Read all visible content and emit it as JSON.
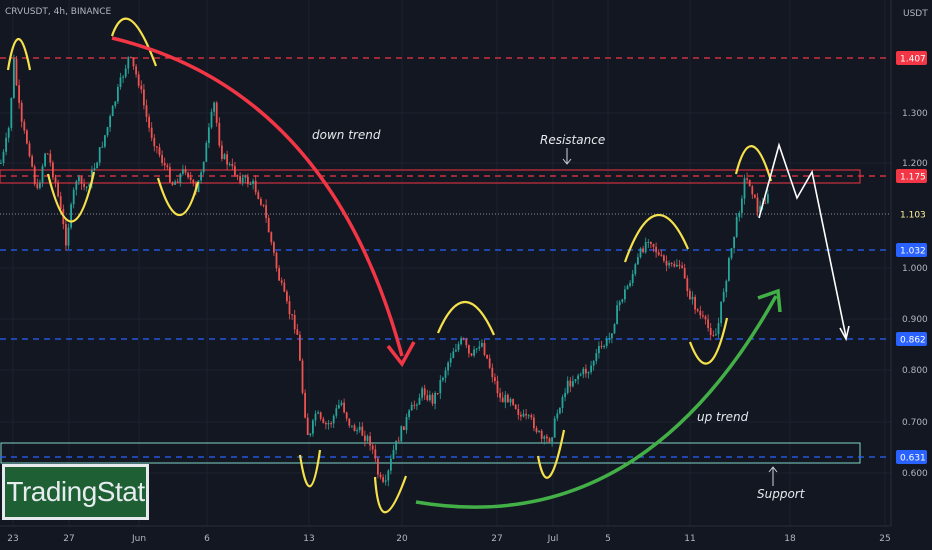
{
  "header": {
    "symbol_text": "CRVUSDT, 4h, BINANCE"
  },
  "price_scale": {
    "currency": "USDT",
    "ticks": [
      "1.300",
      "1.200",
      "1.000",
      "0.900",
      "0.800",
      "0.700",
      "0.600"
    ]
  },
  "time_axis": {
    "labels": [
      "23",
      "27",
      "Jun",
      "6",
      "13",
      "20",
      "27",
      "Jul",
      "5",
      "11",
      "18",
      "25"
    ]
  },
  "levels": [
    {
      "label": "1.407",
      "color": "#f23645",
      "type": "resistance-top"
    },
    {
      "label": "1.175",
      "color": "#f23645",
      "type": "resistance"
    },
    {
      "label": "1.103",
      "color": "#fff59d",
      "type": "current"
    },
    {
      "label": "1.032",
      "color": "#2962ff",
      "type": "level"
    },
    {
      "label": "0.862",
      "color": "#2962ff",
      "type": "level"
    },
    {
      "label": "0.631",
      "color": "#2962ff",
      "type": "support"
    }
  ],
  "annotations": {
    "down_trend": "down trend",
    "up_trend": "up trend",
    "resistance": "Resistance",
    "support": "Support"
  },
  "logo": {
    "text": "TradingStat",
    "icon": "tradingstat-logo"
  },
  "colors": {
    "up": "#26a69a",
    "down": "#ef5350",
    "wave": "#f5e14b",
    "down_arrow": "#f23645",
    "up_arrow": "#43b047",
    "projection": "#ffffff"
  },
  "chart_data": {
    "type": "candlestick",
    "symbol": "CRVUSDT",
    "interval": "4h",
    "exchange": "BINANCE",
    "x_axis_ticks": [
      "23",
      "27",
      "Jun",
      "6",
      "13",
      "20",
      "27",
      "Jul",
      "5",
      "11",
      "18",
      "25"
    ],
    "y_axis_ticks": [
      1.3,
      1.2,
      1.0,
      0.9,
      0.8,
      0.7,
      0.6
    ],
    "ylim": [
      0.55,
      1.45
    ],
    "horizontal_levels": [
      1.407,
      1.175,
      1.103,
      1.032,
      0.862,
      0.631
    ],
    "price_path": [
      {
        "x": 0,
        "y": 1.2
      },
      {
        "x": 3,
        "y": 1.22
      },
      {
        "x": 8,
        "y": 1.27
      },
      {
        "x": 13,
        "y": 1.4
      },
      {
        "x": 20,
        "y": 1.28
      },
      {
        "x": 28,
        "y": 1.23
      },
      {
        "x": 36,
        "y": 1.14
      },
      {
        "x": 45,
        "y": 1.23
      },
      {
        "x": 55,
        "y": 1.16
      },
      {
        "x": 65,
        "y": 1.05
      },
      {
        "x": 75,
        "y": 1.17
      },
      {
        "x": 85,
        "y": 1.15
      },
      {
        "x": 95,
        "y": 1.2
      },
      {
        "x": 108,
        "y": 1.28
      },
      {
        "x": 118,
        "y": 1.35
      },
      {
        "x": 128,
        "y": 1.41
      },
      {
        "x": 138,
        "y": 1.36
      },
      {
        "x": 148,
        "y": 1.27
      },
      {
        "x": 160,
        "y": 1.21
      },
      {
        "x": 172,
        "y": 1.16
      },
      {
        "x": 185,
        "y": 1.19
      },
      {
        "x": 195,
        "y": 1.14
      },
      {
        "x": 205,
        "y": 1.23
      },
      {
        "x": 213,
        "y": 1.32
      },
      {
        "x": 220,
        "y": 1.22
      },
      {
        "x": 230,
        "y": 1.19
      },
      {
        "x": 240,
        "y": 1.17
      },
      {
        "x": 252,
        "y": 1.16
      },
      {
        "x": 262,
        "y": 1.12
      },
      {
        "x": 270,
        "y": 1.05
      },
      {
        "x": 278,
        "y": 0.98
      },
      {
        "x": 287,
        "y": 0.92
      },
      {
        "x": 296,
        "y": 0.88
      },
      {
        "x": 302,
        "y": 0.75
      },
      {
        "x": 308,
        "y": 0.66
      },
      {
        "x": 315,
        "y": 0.72
      },
      {
        "x": 322,
        "y": 0.69
      },
      {
        "x": 330,
        "y": 0.7
      },
      {
        "x": 340,
        "y": 0.74
      },
      {
        "x": 350,
        "y": 0.69
      },
      {
        "x": 360,
        "y": 0.68
      },
      {
        "x": 370,
        "y": 0.66
      },
      {
        "x": 378,
        "y": 0.59
      },
      {
        "x": 384,
        "y": 0.57
      },
      {
        "x": 392,
        "y": 0.64
      },
      {
        "x": 402,
        "y": 0.69
      },
      {
        "x": 412,
        "y": 0.73
      },
      {
        "x": 422,
        "y": 0.76
      },
      {
        "x": 432,
        "y": 0.74
      },
      {
        "x": 442,
        "y": 0.79
      },
      {
        "x": 452,
        "y": 0.84
      },
      {
        "x": 462,
        "y": 0.86
      },
      {
        "x": 470,
        "y": 0.82
      },
      {
        "x": 480,
        "y": 0.86
      },
      {
        "x": 490,
        "y": 0.8
      },
      {
        "x": 500,
        "y": 0.74
      },
      {
        "x": 510,
        "y": 0.75
      },
      {
        "x": 520,
        "y": 0.71
      },
      {
        "x": 532,
        "y": 0.7
      },
      {
        "x": 542,
        "y": 0.66
      },
      {
        "x": 550,
        "y": 0.67
      },
      {
        "x": 558,
        "y": 0.73
      },
      {
        "x": 566,
        "y": 0.77
      },
      {
        "x": 576,
        "y": 0.79
      },
      {
        "x": 588,
        "y": 0.8
      },
      {
        "x": 598,
        "y": 0.84
      },
      {
        "x": 608,
        "y": 0.86
      },
      {
        "x": 618,
        "y": 0.93
      },
      {
        "x": 628,
        "y": 0.97
      },
      {
        "x": 638,
        "y": 1.02
      },
      {
        "x": 648,
        "y": 1.06
      },
      {
        "x": 658,
        "y": 1.02
      },
      {
        "x": 668,
        "y": 1.0
      },
      {
        "x": 678,
        "y": 1.01
      },
      {
        "x": 688,
        "y": 0.95
      },
      {
        "x": 698,
        "y": 0.91
      },
      {
        "x": 708,
        "y": 0.88
      },
      {
        "x": 716,
        "y": 0.87
      },
      {
        "x": 722,
        "y": 0.95
      },
      {
        "x": 730,
        "y": 1.03
      },
      {
        "x": 737,
        "y": 1.1
      },
      {
        "x": 744,
        "y": 1.17
      },
      {
        "x": 750,
        "y": 1.16
      },
      {
        "x": 756,
        "y": 1.11
      },
      {
        "x": 762,
        "y": 1.12
      },
      {
        "x": 768,
        "y": 1.15
      }
    ]
  }
}
